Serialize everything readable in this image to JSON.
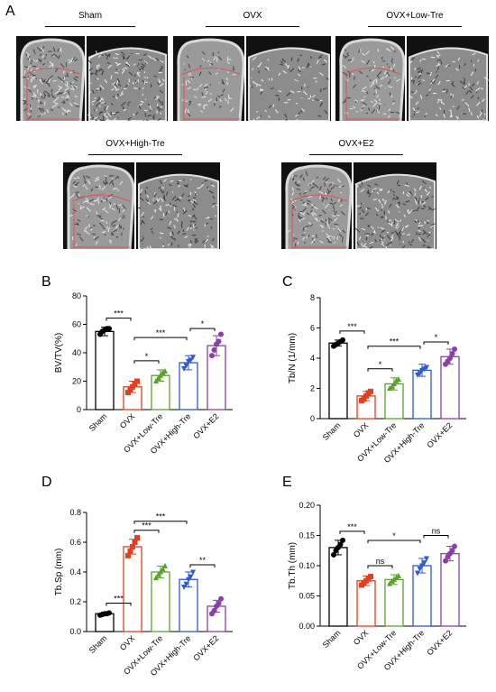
{
  "panel_letters": {
    "a": "A",
    "b": "B",
    "c": "C",
    "d": "D",
    "e": "E"
  },
  "image_groups": [
    "Sham",
    "OVX",
    "OVX+Low-Tre",
    "OVX+High-Tre",
    "OVX+E2"
  ],
  "colors": {
    "Sham": "#000000",
    "OVX": "#e0401f",
    "OVX+Low-Tre": "#5aa02c",
    "OVX+High-Tre": "#2f58c8",
    "OVX+E2": "#8b3fa8",
    "roi": "#e05050"
  },
  "chart_data": [
    {
      "id": "B",
      "type": "bar",
      "categories": [
        "Sham",
        "OVX",
        "OVX+Low-Tre",
        "OVX+High-Tre",
        "OVX+E2"
      ],
      "values": [
        55,
        16,
        24,
        33,
        45
      ],
      "errors": [
        3,
        4,
        4,
        5,
        7
      ],
      "points": [
        [
          53,
          55,
          56,
          57,
          57
        ],
        [
          12,
          14,
          16,
          18,
          20
        ],
        [
          20,
          22,
          24,
          26,
          27
        ],
        [
          29,
          31,
          34,
          35,
          37
        ],
        [
          38,
          42,
          46,
          48,
          53
        ]
      ],
      "markers": [
        "circle",
        "square",
        "triangle",
        "triangle-down",
        "circle"
      ],
      "ylabel": "BV/TV(%)",
      "ylim": [
        0,
        80
      ],
      "yticks": [
        0,
        20,
        40,
        60,
        80
      ],
      "sig": [
        {
          "from": 0,
          "to": 1,
          "label": "***",
          "level": 0
        },
        {
          "from": 1,
          "to": 2,
          "label": "*",
          "level": 0
        },
        {
          "from": 1,
          "to": 3,
          "label": "***",
          "level": 1
        },
        {
          "from": 3,
          "to": 4,
          "label": "*",
          "level": 0
        }
      ]
    },
    {
      "id": "C",
      "type": "bar",
      "categories": [
        "Sham",
        "OVX",
        "OVX+Low-Tre",
        "OVX+High-Tre",
        "OVX+E2"
      ],
      "values": [
        5.0,
        1.5,
        2.3,
        3.2,
        4.1
      ],
      "errors": [
        0.2,
        0.3,
        0.4,
        0.4,
        0.5
      ],
      "points": [
        [
          4.8,
          4.9,
          5.0,
          5.1,
          5.2
        ],
        [
          1.2,
          1.3,
          1.5,
          1.7,
          1.8
        ],
        [
          2.0,
          2.1,
          2.3,
          2.5,
          2.6
        ],
        [
          2.9,
          3.0,
          3.2,
          3.3,
          3.4
        ],
        [
          3.6,
          3.8,
          4.0,
          4.3,
          4.6
        ]
      ],
      "markers": [
        "circle",
        "square",
        "triangle",
        "triangle-down",
        "circle"
      ],
      "ylabel": "Tb/N (1/mm)",
      "ylim": [
        0,
        8
      ],
      "yticks": [
        0,
        2,
        4,
        6,
        8
      ],
      "sig": [
        {
          "from": 0,
          "to": 1,
          "label": "***",
          "level": 0
        },
        {
          "from": 1,
          "to": 2,
          "label": "*",
          "level": 0
        },
        {
          "from": 1,
          "to": 3,
          "label": "***",
          "level": 1
        },
        {
          "from": 3,
          "to": 4,
          "label": "*",
          "level": 0
        }
      ]
    },
    {
      "id": "D",
      "type": "bar",
      "categories": [
        "Sham",
        "OVX",
        "OVX+Low-Tre",
        "OVX+High-Tre",
        "OVX+E2"
      ],
      "values": [
        0.12,
        0.57,
        0.4,
        0.35,
        0.17
      ],
      "errors": [
        0.01,
        0.05,
        0.04,
        0.05,
        0.04
      ],
      "points": [
        [
          0.11,
          0.115,
          0.12,
          0.12,
          0.125
        ],
        [
          0.51,
          0.54,
          0.57,
          0.6,
          0.63
        ],
        [
          0.36,
          0.38,
          0.4,
          0.42,
          0.44
        ],
        [
          0.3,
          0.32,
          0.35,
          0.37,
          0.4
        ],
        [
          0.12,
          0.14,
          0.17,
          0.19,
          0.22
        ]
      ],
      "markers": [
        "circle",
        "square",
        "triangle",
        "triangle-down",
        "circle"
      ],
      "ylabel": "Tb.Sp (mm)",
      "ylim": [
        0,
        0.8
      ],
      "yticks": [
        0.0,
        0.2,
        0.4,
        0.6,
        0.8
      ],
      "tick_decimals": 1,
      "sig": [
        {
          "from": 0,
          "to": 1,
          "label": "***",
          "level": 0
        },
        {
          "from": 1,
          "to": 2,
          "label": "***",
          "level": 0
        },
        {
          "from": 1,
          "to": 3,
          "label": "***",
          "level": 1
        },
        {
          "from": 3,
          "to": 4,
          "label": "**",
          "level": -1
        }
      ]
    },
    {
      "id": "E",
      "type": "bar",
      "categories": [
        "Sham",
        "OVX",
        "OVX+Low-Tre",
        "OVX+High-Tre",
        "OVX+E2"
      ],
      "values": [
        0.13,
        0.075,
        0.077,
        0.1,
        0.12
      ],
      "errors": [
        0.012,
        0.008,
        0.008,
        0.012,
        0.012
      ],
      "points": [
        [
          0.118,
          0.125,
          0.13,
          0.135,
          0.142
        ],
        [
          0.068,
          0.072,
          0.075,
          0.078,
          0.082
        ],
        [
          0.07,
          0.074,
          0.077,
          0.08,
          0.083
        ],
        [
          0.088,
          0.095,
          0.1,
          0.105,
          0.112
        ],
        [
          0.108,
          0.115,
          0.12,
          0.125,
          0.132
        ]
      ],
      "markers": [
        "circle",
        "square",
        "triangle",
        "triangle-down",
        "circle"
      ],
      "ylabel": "Tb.Th (mm)",
      "ylim": [
        0,
        0.2
      ],
      "yticks": [
        0.0,
        0.05,
        0.1,
        0.15,
        0.2
      ],
      "tick_decimals": 2,
      "sig": [
        {
          "from": 0,
          "to": 1,
          "label": "***",
          "level": 0
        },
        {
          "from": 1,
          "to": 2,
          "label": "ns",
          "level": 0
        },
        {
          "from": 1,
          "to": 3,
          "label": "*",
          "level": 1
        },
        {
          "from": 3,
          "to": 4,
          "label": "ns",
          "level": 2
        }
      ]
    }
  ]
}
